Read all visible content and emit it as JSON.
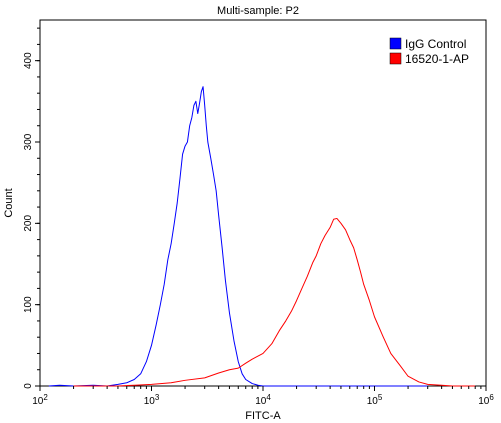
{
  "chart_data": {
    "type": "line",
    "title": "Multi-sample: P2",
    "xlabel": "FITC-A",
    "ylabel": "Count",
    "x_scale": "log",
    "xlim": [
      100,
      1000000
    ],
    "ylim": [
      0,
      450
    ],
    "x_ticks": [
      {
        "value": 100,
        "base": "10",
        "exp": "2"
      },
      {
        "value": 1000,
        "base": "10",
        "exp": "3"
      },
      {
        "value": 10000,
        "base": "10",
        "exp": "4"
      },
      {
        "value": 100000,
        "base": "10",
        "exp": "5"
      },
      {
        "value": 1000000,
        "base": "10",
        "exp": "6"
      }
    ],
    "y_ticks": [
      {
        "value": 0,
        "label": "0"
      },
      {
        "value": 100,
        "label": "100"
      },
      {
        "value": 200,
        "label": "200"
      },
      {
        "value": 300,
        "label": "300"
      },
      {
        "value": 400,
        "label": "400"
      }
    ],
    "grid": false,
    "legend_position": "top-right",
    "series": [
      {
        "name": "IgG Control",
        "color": "#0000ff",
        "points": [
          [
            120,
            0
          ],
          [
            150,
            1
          ],
          [
            200,
            0
          ],
          [
            300,
            1
          ],
          [
            400,
            0
          ],
          [
            500,
            2
          ],
          [
            600,
            4
          ],
          [
            700,
            8
          ],
          [
            800,
            15
          ],
          [
            900,
            30
          ],
          [
            1000,
            50
          ],
          [
            1100,
            75
          ],
          [
            1200,
            100
          ],
          [
            1300,
            125
          ],
          [
            1400,
            155
          ],
          [
            1500,
            175
          ],
          [
            1600,
            200
          ],
          [
            1700,
            225
          ],
          [
            1800,
            255
          ],
          [
            1900,
            285
          ],
          [
            2000,
            295
          ],
          [
            2100,
            300
          ],
          [
            2200,
            320
          ],
          [
            2300,
            330
          ],
          [
            2400,
            345
          ],
          [
            2500,
            350
          ],
          [
            2600,
            335
          ],
          [
            2700,
            348
          ],
          [
            2800,
            362
          ],
          [
            2900,
            368
          ],
          [
            3000,
            345
          ],
          [
            3100,
            320
          ],
          [
            3200,
            300
          ],
          [
            3400,
            280
          ],
          [
            3600,
            260
          ],
          [
            3800,
            240
          ],
          [
            4000,
            210
          ],
          [
            4300,
            170
          ],
          [
            4600,
            130
          ],
          [
            5000,
            90
          ],
          [
            5500,
            55
          ],
          [
            6000,
            30
          ],
          [
            6500,
            15
          ],
          [
            7000,
            8
          ],
          [
            8000,
            3
          ],
          [
            9000,
            1
          ],
          [
            10000,
            0
          ],
          [
            20000,
            0
          ],
          [
            50000,
            0
          ],
          [
            100000,
            0
          ],
          [
            300000,
            0
          ]
        ]
      },
      {
        "name": "16520-1-AP",
        "color": "#ff0000",
        "points": [
          [
            200,
            0
          ],
          [
            500,
            0
          ],
          [
            700,
            1
          ],
          [
            1000,
            2
          ],
          [
            1500,
            4
          ],
          [
            2000,
            7
          ],
          [
            3000,
            10
          ],
          [
            4000,
            16
          ],
          [
            5000,
            20
          ],
          [
            6000,
            22
          ],
          [
            7000,
            28
          ],
          [
            8000,
            33
          ],
          [
            10000,
            40
          ],
          [
            12000,
            52
          ],
          [
            14000,
            68
          ],
          [
            16000,
            80
          ],
          [
            18000,
            92
          ],
          [
            20000,
            105
          ],
          [
            22000,
            118
          ],
          [
            25000,
            135
          ],
          [
            28000,
            152
          ],
          [
            30000,
            160
          ],
          [
            33000,
            175
          ],
          [
            36000,
            185
          ],
          [
            40000,
            195
          ],
          [
            43000,
            205
          ],
          [
            46000,
            206
          ],
          [
            50000,
            200
          ],
          [
            55000,
            192
          ],
          [
            60000,
            180
          ],
          [
            65000,
            170
          ],
          [
            70000,
            155
          ],
          [
            75000,
            140
          ],
          [
            80000,
            125
          ],
          [
            90000,
            105
          ],
          [
            100000,
            85
          ],
          [
            120000,
            60
          ],
          [
            140000,
            40
          ],
          [
            170000,
            25
          ],
          [
            200000,
            12
          ],
          [
            250000,
            5
          ],
          [
            300000,
            2
          ],
          [
            400000,
            1
          ],
          [
            500000,
            0
          ],
          [
            800000,
            0
          ]
        ]
      }
    ]
  }
}
